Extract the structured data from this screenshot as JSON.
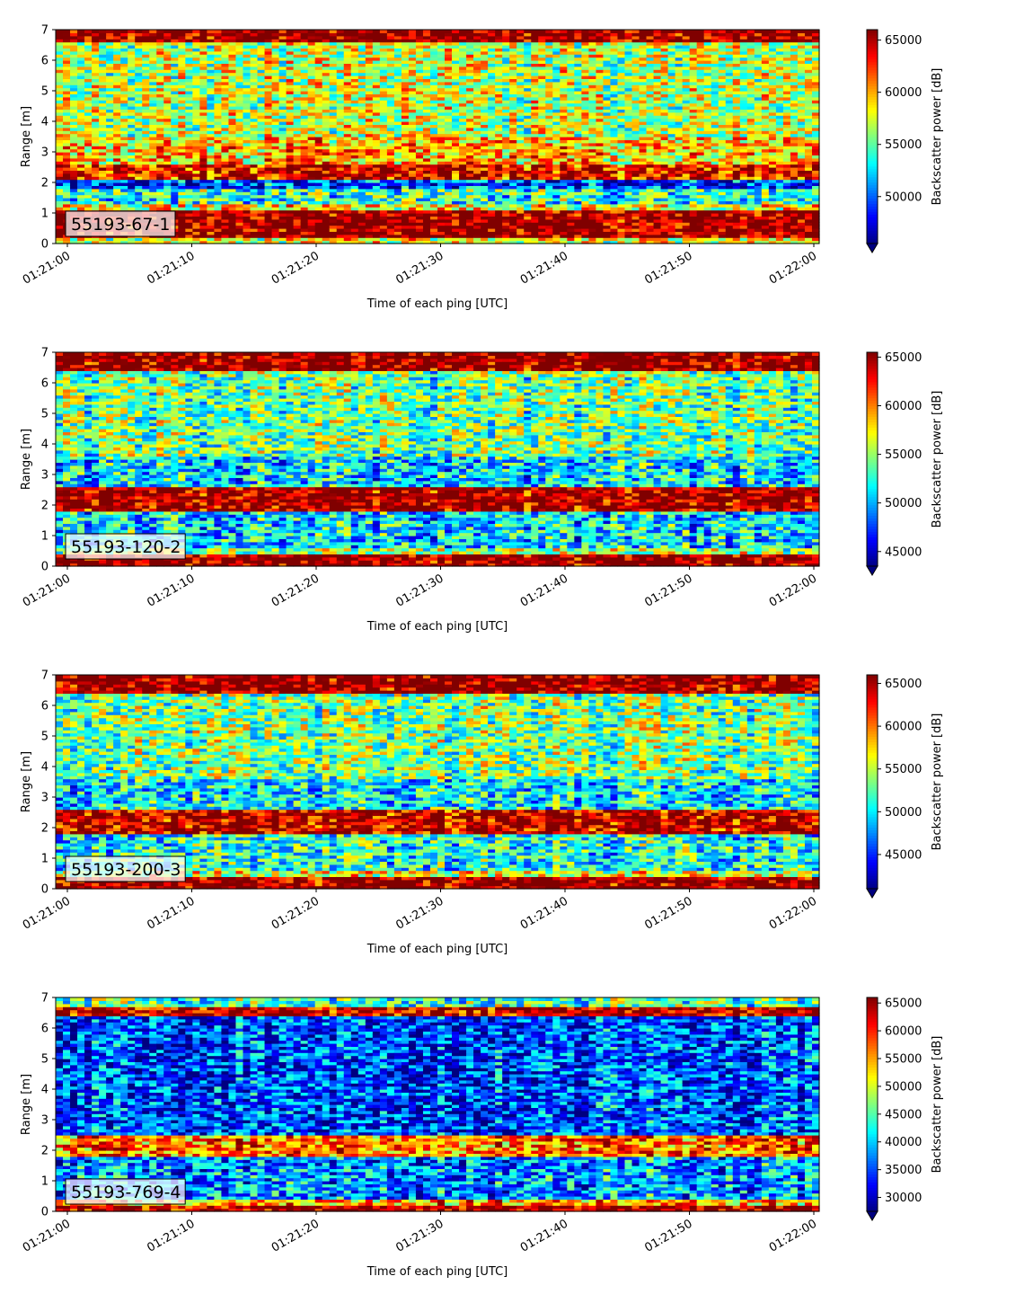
{
  "chart_data": [
    {
      "type": "heatmap",
      "label": "55193-67-1",
      "xlabel": "Time of each ping [UTC]",
      "ylabel": "Range [m]",
      "xticks": [
        "01:21:00",
        "01:21:10",
        "01:21:20",
        "01:21:30",
        "01:21:40",
        "01:21:50",
        "01:22:00"
      ],
      "yticks": [
        0,
        1,
        2,
        3,
        4,
        5,
        6,
        7
      ],
      "ylim": [
        0,
        7
      ],
      "colorbar": {
        "label": "Backscatter power [dB]",
        "min": 45500,
        "max": 66000,
        "ticks": [
          50000,
          55000,
          60000,
          65000
        ]
      },
      "range_profile": [
        {
          "from": 0.0,
          "to": 0.2,
          "value": 58000
        },
        {
          "from": 0.2,
          "to": 1.1,
          "value": 66000
        },
        {
          "from": 1.1,
          "to": 1.3,
          "value": 58000
        },
        {
          "from": 1.3,
          "to": 1.8,
          "value": 54000
        },
        {
          "from": 1.8,
          "to": 2.1,
          "value": 49500
        },
        {
          "from": 2.1,
          "to": 2.6,
          "value": 63500
        },
        {
          "from": 2.6,
          "to": 3.5,
          "value": 59500
        },
        {
          "from": 3.5,
          "to": 6.6,
          "value": 57000
        },
        {
          "from": 6.6,
          "to": 7.0,
          "value": 66000
        }
      ]
    },
    {
      "type": "heatmap",
      "label": "55193-120-2",
      "xlabel": "Time of each ping [UTC]",
      "ylabel": "Range [m]",
      "xticks": [
        "01:21:00",
        "01:21:10",
        "01:21:20",
        "01:21:30",
        "01:21:40",
        "01:21:50",
        "01:22:00"
      ],
      "yticks": [
        0,
        1,
        2,
        3,
        4,
        5,
        6,
        7
      ],
      "ylim": [
        0,
        7
      ],
      "colorbar": {
        "label": "Backscatter power [dB]",
        "min": 43500,
        "max": 65500,
        "ticks": [
          45000,
          50000,
          55000,
          60000,
          65000
        ]
      },
      "range_profile": [
        {
          "from": 0.0,
          "to": 0.4,
          "value": 65500
        },
        {
          "from": 0.4,
          "to": 0.6,
          "value": 55000
        },
        {
          "from": 0.6,
          "to": 1.8,
          "value": 51000
        },
        {
          "from": 1.8,
          "to": 2.6,
          "value": 65000
        },
        {
          "from": 2.6,
          "to": 3.6,
          "value": 51000
        },
        {
          "from": 3.6,
          "to": 6.4,
          "value": 54000
        },
        {
          "from": 6.4,
          "to": 7.0,
          "value": 65500
        }
      ]
    },
    {
      "type": "heatmap",
      "label": "55193-200-3",
      "xlabel": "Time of each ping [UTC]",
      "ylabel": "Range [m]",
      "xticks": [
        "01:21:00",
        "01:21:10",
        "01:21:20",
        "01:21:30",
        "01:21:40",
        "01:21:50",
        "01:22:00"
      ],
      "yticks": [
        0,
        1,
        2,
        3,
        4,
        5,
        6,
        7
      ],
      "ylim": [
        0,
        7
      ],
      "colorbar": {
        "label": "Backscatter power [dB]",
        "min": 41000,
        "max": 66000,
        "ticks": [
          45000,
          50000,
          55000,
          60000,
          65000
        ]
      },
      "range_profile": [
        {
          "from": 0.0,
          "to": 0.4,
          "value": 66000
        },
        {
          "from": 0.4,
          "to": 0.6,
          "value": 56000
        },
        {
          "from": 0.6,
          "to": 1.8,
          "value": 51000
        },
        {
          "from": 1.8,
          "to": 2.6,
          "value": 64500
        },
        {
          "from": 2.6,
          "to": 3.6,
          "value": 50000
        },
        {
          "from": 3.6,
          "to": 6.4,
          "value": 53500
        },
        {
          "from": 6.4,
          "to": 7.0,
          "value": 66000
        }
      ]
    },
    {
      "type": "heatmap",
      "label": "55193-769-4",
      "xlabel": "Time of each ping [UTC]",
      "ylabel": "Range [m]",
      "xticks": [
        "01:21:00",
        "01:21:10",
        "01:21:20",
        "01:21:30",
        "01:21:40",
        "01:21:50",
        "01:22:00"
      ],
      "yticks": [
        0,
        1,
        2,
        3,
        4,
        5,
        6,
        7
      ],
      "ylim": [
        0,
        7
      ],
      "colorbar": {
        "label": "Backscatter power [dB]",
        "min": 27500,
        "max": 66000,
        "ticks": [
          30000,
          35000,
          40000,
          45000,
          50000,
          55000,
          60000,
          65000
        ]
      },
      "range_profile": [
        {
          "from": 0.0,
          "to": 0.2,
          "value": 66000
        },
        {
          "from": 0.2,
          "to": 0.4,
          "value": 55000
        },
        {
          "from": 0.4,
          "to": 1.8,
          "value": 38000
        },
        {
          "from": 1.8,
          "to": 2.5,
          "value": 57000
        },
        {
          "from": 2.5,
          "to": 6.4,
          "value": 35000
        },
        {
          "from": 6.4,
          "to": 6.7,
          "value": 64000
        },
        {
          "from": 6.7,
          "to": 7.0,
          "value": 45000
        }
      ]
    }
  ]
}
